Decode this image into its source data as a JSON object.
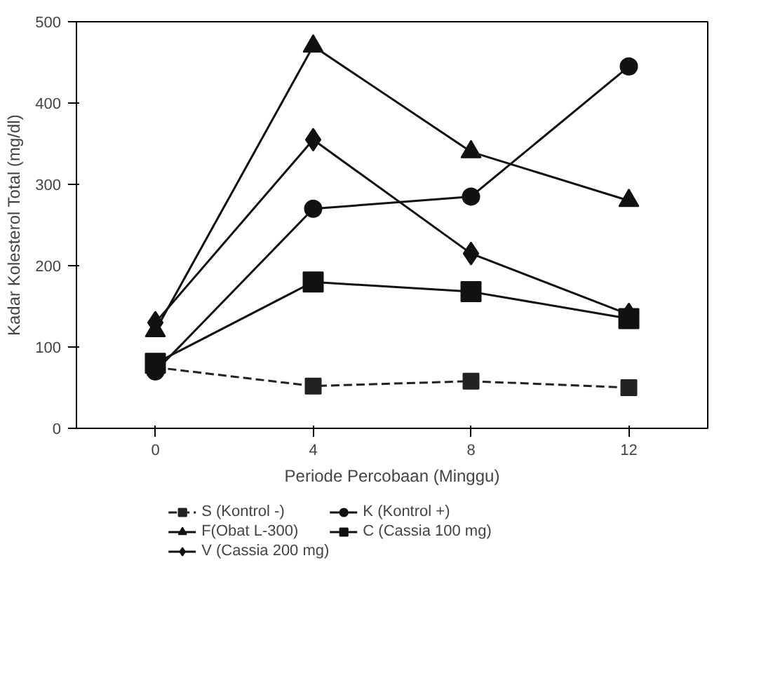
{
  "chart_data": {
    "type": "line",
    "xlabel": "Periode Percobaan (Minggu)",
    "ylabel": "Kadar Kolesterol Total (mg/dl)",
    "x": [
      0,
      4,
      8,
      12
    ],
    "xlim": [
      -2,
      14
    ],
    "xticks": [
      0,
      4,
      8,
      12
    ],
    "ylim": [
      0,
      500
    ],
    "yticks": [
      0,
      100,
      200,
      300,
      400,
      500
    ],
    "grid": false,
    "legend": "bottom",
    "series": [
      {
        "name": "S (Kontrol -)",
        "color": "#222222",
        "values": [
          75,
          52,
          58,
          50
        ],
        "marker": "square",
        "line_style": "dashed"
      },
      {
        "name": "F(Obat L-300)",
        "color": "#111111",
        "values": [
          120,
          470,
          340,
          280
        ],
        "marker": "triangle"
      },
      {
        "name": "V (Cassia 200 mg)",
        "color": "#111111",
        "values": [
          130,
          355,
          215,
          140
        ],
        "marker": "diamond"
      },
      {
        "name": "K (Kontrol +)",
        "color": "#111111",
        "values": [
          70,
          270,
          285,
          445
        ],
        "marker": "circle"
      },
      {
        "name": "C (Cassia 100 mg)",
        "color": "#111111",
        "values": [
          80,
          180,
          168,
          135
        ],
        "marker": "square"
      }
    ]
  }
}
